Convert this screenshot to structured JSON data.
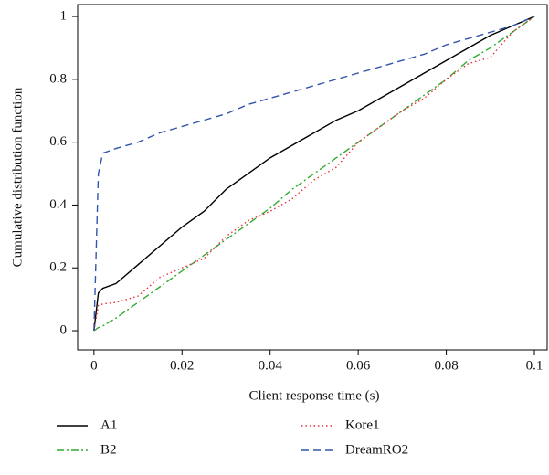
{
  "chart_data": {
    "type": "line",
    "x_label": "Client response time (s)",
    "y_label": "Cumulative distribution function",
    "x": [
      0,
      0.001,
      0.002,
      0.005,
      0.01,
      0.015,
      0.02,
      0.025,
      0.03,
      0.035,
      0.04,
      0.045,
      0.05,
      0.055,
      0.06,
      0.065,
      0.07,
      0.075,
      0.08,
      0.085,
      0.09,
      0.095,
      0.1
    ],
    "series": [
      {
        "name": "A1",
        "color": "#000000",
        "dash": "solid",
        "values": [
          0,
          0.12,
          0.135,
          0.15,
          0.21,
          0.27,
          0.33,
          0.38,
          0.45,
          0.5,
          0.55,
          0.59,
          0.63,
          0.67,
          0.7,
          0.74,
          0.78,
          0.82,
          0.86,
          0.9,
          0.94,
          0.97,
          1
        ]
      },
      {
        "name": "B2",
        "color": "#33aa33",
        "dash": "dashdot",
        "values": [
          0,
          0.01,
          0.015,
          0.04,
          0.09,
          0.14,
          0.19,
          0.24,
          0.29,
          0.34,
          0.39,
          0.45,
          0.5,
          0.55,
          0.6,
          0.65,
          0.7,
          0.75,
          0.8,
          0.86,
          0.9,
          0.95,
          1
        ]
      },
      {
        "name": "Kore1",
        "color": "#e8303a",
        "dash": "dotted",
        "values": [
          0,
          0.08,
          0.085,
          0.09,
          0.11,
          0.17,
          0.2,
          0.23,
          0.3,
          0.35,
          0.38,
          0.42,
          0.48,
          0.52,
          0.6,
          0.65,
          0.7,
          0.74,
          0.8,
          0.85,
          0.87,
          0.95,
          1
        ]
      },
      {
        "name": "DreamRO2",
        "color": "#3355aa",
        "dash": "dashed",
        "values": [
          0,
          0.5,
          0.565,
          0.58,
          0.6,
          0.63,
          0.65,
          0.67,
          0.69,
          0.72,
          0.74,
          0.76,
          0.78,
          0.8,
          0.82,
          0.84,
          0.86,
          0.88,
          0.91,
          0.93,
          0.95,
          0.97,
          1
        ]
      }
    ],
    "xlim": [
      -0.0037,
      0.1029
    ],
    "ylim": [
      -0.061,
      1.038
    ],
    "xticks": [
      0,
      0.02,
      0.04,
      0.06,
      0.08,
      0.1
    ],
    "yticks": [
      0,
      0.2,
      0.4,
      0.6,
      0.8,
      1
    ],
    "grid": false,
    "legend": "bottom"
  }
}
